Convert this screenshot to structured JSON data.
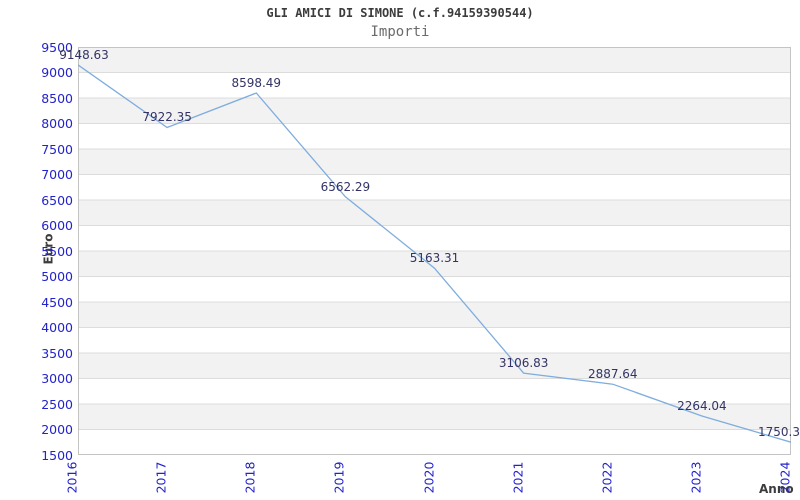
{
  "title": "GLI AMICI DI SIMONE (c.f.94159390544)",
  "subtitle": "Importi",
  "chart_data": {
    "type": "line",
    "x": [
      "2016",
      "2017",
      "2018",
      "2019",
      "2020",
      "2021",
      "2022",
      "2023",
      "2024"
    ],
    "values": [
      9148.63,
      7922.35,
      8598.49,
      6562.29,
      5163.31,
      3106.83,
      2887.64,
      2264.04,
      1750.3
    ],
    "point_labels": [
      "9148.63",
      "7922.35",
      "8598.49",
      "6562.29",
      "5163.31",
      "3106.83",
      "2887.64",
      "2264.04",
      "1750.3"
    ],
    "xlabel": "Anno",
    "ylabel": "Euro",
    "ylim": [
      1500,
      9500
    ],
    "ytick_step": 500,
    "grid": true,
    "band_fill": "alternating horizontal bands, topmost band shaded",
    "legend_position": "none"
  },
  "colors": {
    "line": "#7fadde",
    "band_gray": "#f2f2f2",
    "gridline": "#dcdcdc",
    "plot_border": "#c4c4c4",
    "tick_text": "#2323cd",
    "point_label_text": "#333366",
    "title_text": "#3b3b3b",
    "subtitle_text": "#6b6b6b",
    "axis_label_text": "#3c3c3c"
  }
}
